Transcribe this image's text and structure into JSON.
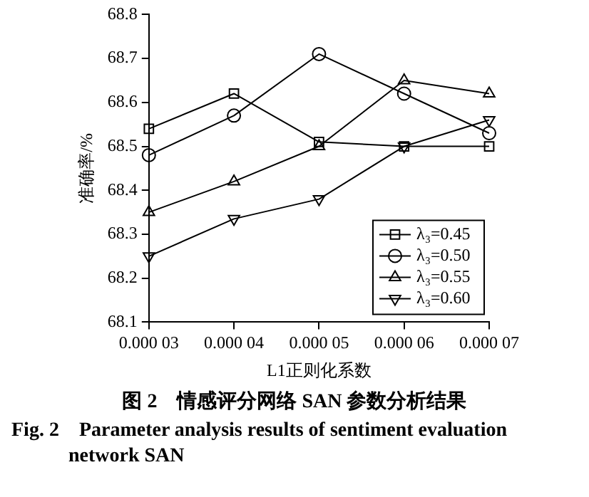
{
  "chart_data": {
    "type": "line",
    "xlabel": "L1正则化系数",
    "ylabel": "准确率/%",
    "categories": [
      "0.000 03",
      "0.000 04",
      "0.000 05",
      "0.000 06",
      "0.000 07"
    ],
    "series": [
      {
        "name": "λ₃=0.45",
        "color": "#000000",
        "marker": "square",
        "values": [
          68.54,
          68.62,
          68.51,
          68.5,
          68.5
        ]
      },
      {
        "name": "λ₃=0.50",
        "color": "#000000",
        "marker": "circle",
        "values": [
          68.48,
          68.57,
          68.71,
          68.62,
          68.53
        ]
      },
      {
        "name": "λ₃=0.55",
        "color": "#000000",
        "marker": "triangle",
        "values": [
          68.35,
          68.42,
          68.5,
          68.65,
          68.62
        ]
      },
      {
        "name": "λ₃=0.60",
        "color": "#000000",
        "marker": "triangle-down",
        "values": [
          68.25,
          68.335,
          68.38,
          68.5,
          68.56
        ]
      }
    ],
    "ylim": [
      68.1,
      68.8
    ],
    "yticks": [
      68.1,
      68.2,
      68.3,
      68.4,
      68.5,
      68.6,
      68.7,
      68.8
    ],
    "grid": false,
    "legend": "bottom right",
    "line_style": "solid",
    "annotations": [
      "图 2　情感评分网络 SAN 参数分析结果",
      "Fig. 2　Parameter analysis results of sentiment evaluation network SAN"
    ]
  }
}
